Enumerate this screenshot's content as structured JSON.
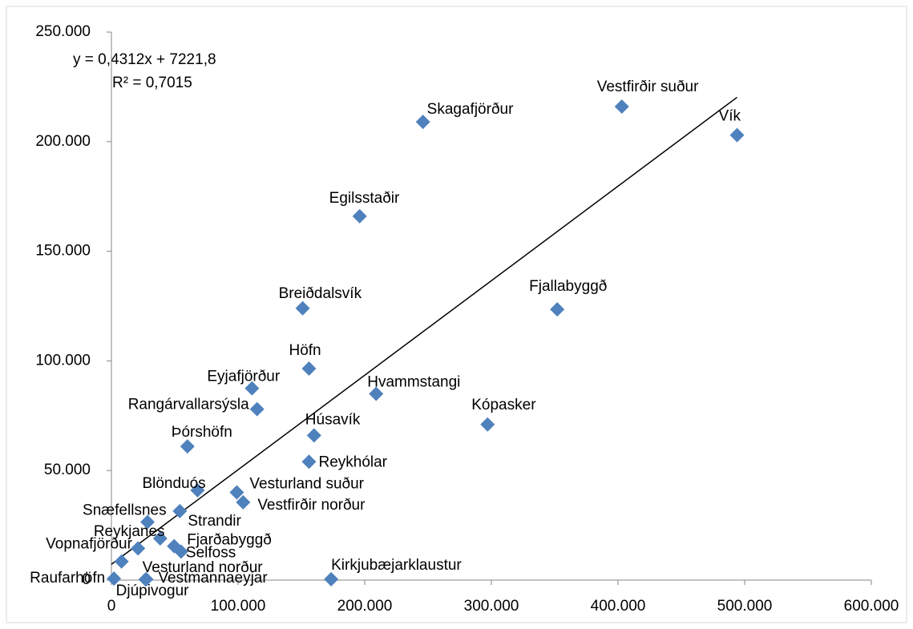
{
  "chart_data": {
    "type": "scatter",
    "color": "#4f81bd",
    "trendline": {
      "equation": "y = 0,4312x + 7221,8",
      "r2": "R² = 0,7015",
      "slope": 0.4312,
      "intercept": 7221.8
    },
    "series": [
      {
        "labels": [
          "Vestfirðir suður",
          "Vík",
          "Skagafjörður",
          "Egilsstaðir",
          "Fjallabyggð",
          "Breiðdalsvík",
          "Höfn",
          "Hvammstangi",
          "Eyjafjörður",
          "Rangárvallarsýsla",
          "Kópasker",
          "Húsavík",
          "Þórshöfn",
          "Reykhólar",
          "Blönduós",
          "Vesturland suður",
          "Vestfirðir norður",
          "Snæfellsnes",
          "Strandir",
          "Reykjanes",
          "Fjarðabyggð",
          "Selfoss",
          "Vopnafjörður",
          "Vesturland norður",
          "Raufarhöfn",
          "Djúpivogur",
          "Vestmannaeyjar",
          "Kirkjubæjarklaustur"
        ],
        "x": [
          403000,
          494000,
          246000,
          196000,
          352000,
          151000,
          156000,
          209000,
          111000,
          115000,
          297000,
          160000,
          60000,
          156000,
          68000,
          99000,
          104000,
          28500,
          54000,
          38500,
          49500,
          55000,
          21000,
          8000,
          2000,
          27000,
          27500,
          173500
        ],
        "values": [
          216000,
          203000,
          209000,
          166000,
          123500,
          124000,
          96500,
          85000,
          87500,
          78000,
          71000,
          66000,
          61000,
          54000,
          41000,
          40000,
          35500,
          26500,
          31500,
          19000,
          15500,
          13000,
          14500,
          8500,
          700,
          300,
          400,
          400
        ]
      }
    ],
    "xlim": [
      0,
      600000
    ],
    "xticks": [
      0,
      {
        "value": 100000,
        "label": "100.000"
      },
      {
        "value": 200000,
        "label": "200.000"
      },
      {
        "value": 300000,
        "label": "300.000"
      },
      {
        "value": 400000,
        "label": "400.000"
      },
      {
        "value": 500000,
        "label": "500.000"
      },
      {
        "value": 600000,
        "label": "600.000"
      }
    ],
    "ylim": [
      0,
      250000
    ],
    "yticks": [
      0,
      {
        "value": 50000,
        "label": "50.000"
      },
      {
        "value": 100000,
        "label": "100.000"
      },
      {
        "value": 150000,
        "label": "150.000"
      },
      {
        "value": 200000,
        "label": "200.000"
      },
      {
        "value": 250000,
        "label": "250.000"
      }
    ]
  }
}
